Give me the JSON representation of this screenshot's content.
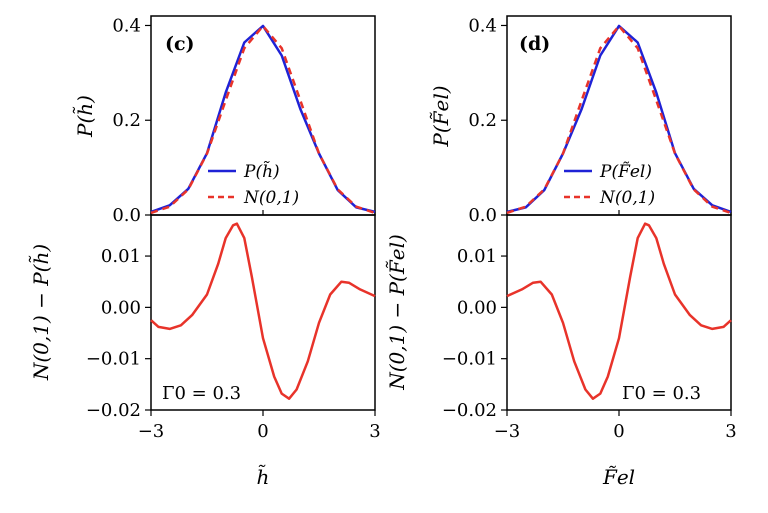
{
  "chart_data": [
    {
      "panel": "c",
      "panel_label": "(c)",
      "type": "line",
      "xlabel": "h̃",
      "ylabel": "P(h̃)",
      "xlim": [
        -3,
        3
      ],
      "ylim": [
        0,
        0.42
      ],
      "yticks": [
        0.0,
        0.2,
        0.4
      ],
      "ytick_labels": [
        "0.0",
        "0.2",
        "0.4"
      ],
      "legend_position": "lower-right",
      "series": [
        {
          "name": "P(h̃)",
          "color": "#1f22d6",
          "style": "solid",
          "x": [
            -3,
            -2.5,
            -2,
            -1.5,
            -1,
            -0.5,
            0,
            0.5,
            1,
            1.5,
            2,
            2.5,
            3
          ],
          "values": [
            0.0065,
            0.0205,
            0.0554,
            0.1304,
            0.2584,
            0.3641,
            0.399,
            0.3366,
            0.224,
            0.1299,
            0.0525,
            0.016,
            0.0066
          ]
        },
        {
          "name": "N(0,1)",
          "color": "#e8332a",
          "style": "dashed",
          "x": [
            -3,
            -2.5,
            -2,
            -1.5,
            -1,
            -0.5,
            0,
            0.5,
            1,
            1.5,
            2,
            2.5,
            3
          ],
          "values": [
            0.0044,
            0.0175,
            0.054,
            0.1295,
            0.242,
            0.3521,
            0.3989,
            0.3521,
            0.242,
            0.1295,
            0.054,
            0.0175,
            0.0044
          ]
        }
      ]
    },
    {
      "panel": "c-diff",
      "type": "line",
      "xlabel": "h̃",
      "ylabel": "N(0,1) − P(h̃)",
      "xlim": [
        -3,
        3
      ],
      "ylim": [
        -0.02,
        0.018
      ],
      "yticks": [
        -0.02,
        -0.01,
        0.0,
        0.01
      ],
      "ytick_labels": [
        "−0.02",
        "−0.01",
        "0.00",
        "0.01"
      ],
      "xticks": [
        -3,
        0,
        3
      ],
      "xtick_labels": [
        "−3",
        "0",
        "3"
      ],
      "annotation": "Γ0 = 0.3",
      "series": [
        {
          "name": "N(0,1) − P(h̃)",
          "color": "#e8332a",
          "style": "solid",
          "x": [
            -3,
            -2.8,
            -2.5,
            -2.2,
            -1.9,
            -1.5,
            -1.2,
            -1.0,
            -0.8,
            -0.7,
            -0.5,
            -0.3,
            0.0,
            0.3,
            0.5,
            0.7,
            0.9,
            1.2,
            1.5,
            1.8,
            2.1,
            2.3,
            2.6,
            3.0
          ],
          "values": [
            -0.0025,
            -0.0038,
            -0.0042,
            -0.0035,
            -0.0015,
            0.0025,
            0.0085,
            0.0135,
            0.016,
            0.0163,
            0.0135,
            0.006,
            -0.006,
            -0.0135,
            -0.0168,
            -0.0178,
            -0.016,
            -0.0105,
            -0.003,
            0.0025,
            0.005,
            0.0048,
            0.0035,
            0.0022
          ]
        }
      ]
    },
    {
      "panel": "d",
      "panel_label": "(d)",
      "type": "line",
      "xlabel": "F̃el",
      "ylabel": "P(F̃el)",
      "xlim": [
        -3,
        3
      ],
      "ylim": [
        0,
        0.42
      ],
      "yticks": [
        0.0,
        0.2,
        0.4
      ],
      "ytick_labels": [
        "0.0",
        "0.2",
        "0.4"
      ],
      "legend_position": "lower-right",
      "series": [
        {
          "name": "P(F̃el)",
          "color": "#1f22d6",
          "style": "solid",
          "x": [
            -3,
            -2.5,
            -2,
            -1.5,
            -1,
            -0.5,
            0,
            0.5,
            1,
            1.5,
            2,
            2.5,
            3
          ],
          "values": [
            0.0066,
            0.016,
            0.0525,
            0.1299,
            0.224,
            0.3366,
            0.399,
            0.3641,
            0.2584,
            0.1304,
            0.0554,
            0.0205,
            0.0065
          ]
        },
        {
          "name": "N(0,1)",
          "color": "#e8332a",
          "style": "dashed",
          "x": [
            -3,
            -2.5,
            -2,
            -1.5,
            -1,
            -0.5,
            0,
            0.5,
            1,
            1.5,
            2,
            2.5,
            3
          ],
          "values": [
            0.0044,
            0.0175,
            0.054,
            0.1295,
            0.242,
            0.3521,
            0.3989,
            0.3521,
            0.242,
            0.1295,
            0.054,
            0.0175,
            0.0044
          ]
        }
      ]
    },
    {
      "panel": "d-diff",
      "type": "line",
      "xlabel": "F̃el",
      "ylabel": "N(0,1) − P(F̃el)",
      "xlim": [
        -3,
        3
      ],
      "ylim": [
        -0.02,
        0.018
      ],
      "yticks": [
        -0.02,
        -0.01,
        0.0,
        0.01
      ],
      "ytick_labels": [
        "−0.02",
        "−0.01",
        "0.00",
        "0.01"
      ],
      "xticks": [
        -3,
        0,
        3
      ],
      "xtick_labels": [
        "−3",
        "0",
        "3"
      ],
      "annotation": "Γ0 = 0.3",
      "series": [
        {
          "name": "N(0,1) − P(F̃el)",
          "color": "#e8332a",
          "style": "solid",
          "x": [
            -3.0,
            -2.6,
            -2.3,
            -2.1,
            -1.8,
            -1.5,
            -1.2,
            -0.9,
            -0.7,
            -0.5,
            -0.3,
            0.0,
            0.3,
            0.5,
            0.7,
            0.8,
            1.0,
            1.2,
            1.5,
            1.9,
            2.2,
            2.5,
            2.8,
            3.0
          ],
          "values": [
            0.0022,
            0.0035,
            0.0048,
            0.005,
            0.0025,
            -0.003,
            -0.0105,
            -0.016,
            -0.0178,
            -0.0168,
            -0.0135,
            -0.006,
            0.006,
            0.0135,
            0.0163,
            0.016,
            0.0135,
            0.0085,
            0.0025,
            -0.0015,
            -0.0035,
            -0.0042,
            -0.0038,
            -0.0025
          ]
        }
      ]
    }
  ]
}
